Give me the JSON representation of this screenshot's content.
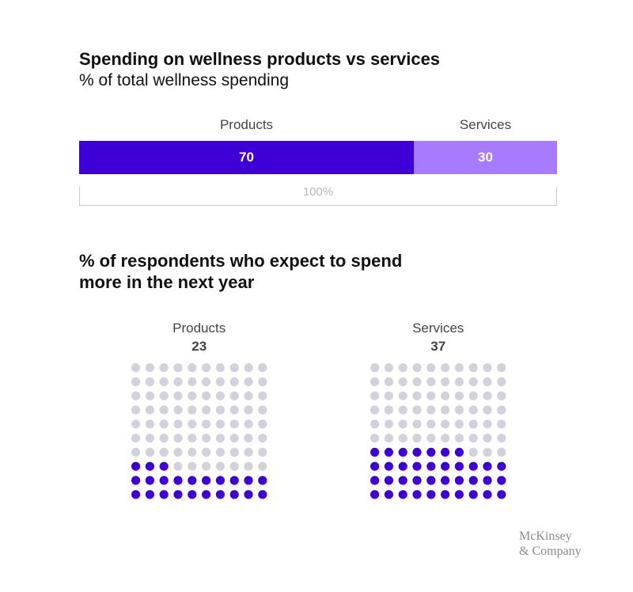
{
  "chart_data": [
    {
      "type": "bar",
      "orientation": "horizontal-stacked",
      "title": "Spending on wellness products vs services",
      "subtitle": "% of total wellness spending",
      "categories": [
        "Products",
        "Services"
      ],
      "values": [
        70,
        30
      ],
      "value_labels": [
        "70",
        "30"
      ],
      "total_label": "100%",
      "colors": [
        "#3d00d6",
        "#a77bff"
      ]
    },
    {
      "type": "waffle",
      "title": "% of respondents who expect to spend more in the next year",
      "grid": {
        "rows": 10,
        "cols": 10
      },
      "series": [
        {
          "name": "Products",
          "value": 23,
          "value_label": "23"
        },
        {
          "name": "Services",
          "value": 37,
          "value_label": "37"
        }
      ],
      "colors": {
        "filled": "#3d00d6",
        "empty": "#d4d0dc"
      }
    }
  ],
  "logo": {
    "line1": "McKinsey",
    "line2": "& Company"
  }
}
